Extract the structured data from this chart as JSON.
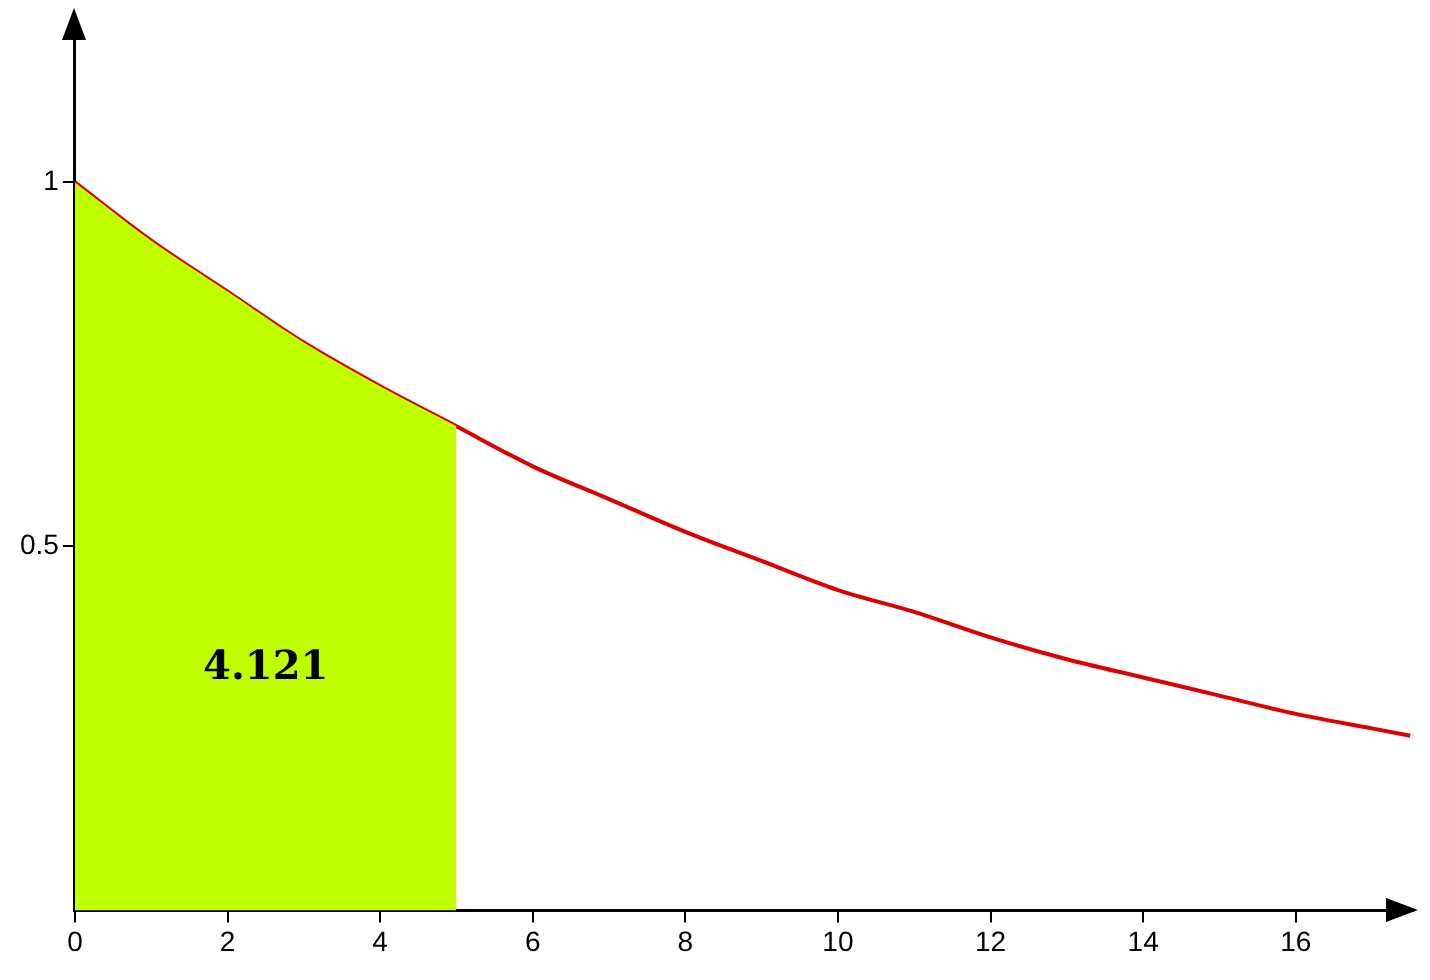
{
  "chart_data": {
    "type": "line",
    "x": [
      0,
      1,
      2,
      3,
      4,
      5,
      6,
      7,
      8,
      9,
      10,
      11,
      12,
      13,
      14,
      15,
      16,
      17,
      17.5
    ],
    "series": [
      {
        "type": "area",
        "color": "#bfff00",
        "x": [
          0,
          1,
          2,
          3,
          4,
          5
        ],
        "values": [
          1,
          0.92,
          0.85,
          0.78,
          0.72,
          0.665
        ]
      },
      {
        "color": "#dd0000",
        "values": [
          1,
          0.92,
          0.85,
          0.78,
          0.72,
          0.665,
          0.61,
          0.565,
          0.52,
          0.48,
          0.44,
          0.41,
          0.375,
          0.345,
          0.32,
          0.295,
          0.27,
          0.25,
          0.24
        ]
      }
    ],
    "xlim": [
      0,
      17.55
    ],
    "ylim": [
      0,
      1.2
    ],
    "xticks": [
      0,
      2,
      4,
      6,
      8,
      10,
      12,
      14,
      16
    ],
    "yticks": [
      0.5,
      1
    ],
    "annotations": [
      "4.121"
    ],
    "grid": false,
    "legend": false
  }
}
